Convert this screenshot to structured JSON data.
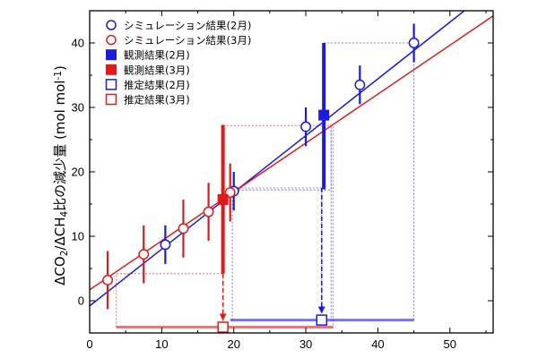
{
  "chart_data": {
    "type": "scatter",
    "title": "",
    "xlabel": "",
    "ylabel_parts": [
      "ΔCO",
      "2",
      "/ΔCH",
      "4",
      "比の減少量 (mol mol",
      "-1",
      ")"
    ],
    "xlim": [
      0,
      56
    ],
    "ylim": [
      -5,
      45
    ],
    "x_ticks": [
      0,
      10,
      20,
      30,
      40,
      50
    ],
    "y_ticks": [
      0,
      10,
      20,
      30,
      40
    ],
    "grid": false,
    "legend_position": "top-left",
    "colors": {
      "feb": "#1a1ae0",
      "mar": "#e01a1a"
    },
    "series": [
      {
        "name": "シミュレーション結果(2月)",
        "marker": "open-circle",
        "color": "#1a1ae0",
        "x": [
          10.5,
          20,
          30,
          37.5,
          45
        ],
        "y": [
          8.7,
          17,
          27,
          33.5,
          40
        ],
        "err": [
          3,
          3,
          3,
          3,
          3
        ]
      },
      {
        "name": "シミュレーション結果(3月)",
        "marker": "open-circle",
        "color": "#e01a1a",
        "x": [
          2.5,
          7.5,
          13,
          16.5,
          19.5
        ],
        "y": [
          3.2,
          7.2,
          11.2,
          13.8,
          16.8
        ],
        "err": [
          4.5,
          4.5,
          4.5,
          4.5,
          4.5
        ]
      },
      {
        "name": "観測結果(2月)",
        "marker": "filled-square",
        "color": "#1a1ae0",
        "x": [
          32.5
        ],
        "y": [
          28.8
        ],
        "yerr_low": [
          11.5
        ],
        "yerr_high": [
          11.2
        ]
      },
      {
        "name": "観測結果(3月)",
        "marker": "filled-square",
        "color": "#e01a1a",
        "x": [
          18.5
        ],
        "y": [
          15.7
        ],
        "yerr_low": [
          11.5
        ],
        "yerr_high": [
          11.6
        ]
      },
      {
        "name": "推定結果(2月)",
        "marker": "open-square",
        "color": "#1a1ae0",
        "x": [
          32.2
        ],
        "y": [
          -3
        ],
        "xerr_low": [
          12.7
        ],
        "xerr_high": [
          12.8
        ]
      },
      {
        "name": "推定結果(3月)",
        "marker": "open-square",
        "color": "#e01a1a",
        "x": [
          18.5
        ],
        "y": [
          -4.1
        ],
        "xerr_low": [
          14.8
        ],
        "xerr_high": [
          15.3
        ]
      }
    ],
    "fit_lines": [
      {
        "color": "#1a1ae0",
        "x": [
          0,
          52
        ],
        "y": [
          -0.8,
          45
        ]
      },
      {
        "color": "#e01a1a",
        "x": [
          0,
          56
        ],
        "y": [
          1.7,
          44.2
        ]
      }
    ],
    "guide_lines": [
      {
        "color": "#1a1ae0",
        "points": [
          [
            20,
            17.5
          ],
          [
            32.2,
            17.5
          ],
          [
            32.2,
            -3
          ]
        ]
      },
      {
        "color": "#e01a1a",
        "points": [
          [
            18.5,
            4.2
          ],
          [
            18.5,
            -4.1
          ]
        ]
      },
      {
        "color": "#1a1ae0",
        "points": [
          [
            19.8,
            -3
          ],
          [
            19.8,
            17.2
          ],
          [
            33.5,
            17.2
          ],
          [
            33.5,
            27.2
          ],
          [
            33.5,
            -3
          ]
        ]
      },
      {
        "color": "#1a1ae0",
        "points": [
          [
            32.5,
            40
          ],
          [
            45,
            40
          ],
          [
            45,
            -3
          ]
        ]
      },
      {
        "color": "#e01a1a",
        "points": [
          [
            3.7,
            -4.1
          ],
          [
            3.7,
            4.2
          ],
          [
            18.5,
            4.2
          ]
        ]
      },
      {
        "color": "#e01a1a",
        "points": [
          [
            18.5,
            27.2
          ],
          [
            33.8,
            27.2
          ],
          [
            33.8,
            -4.1
          ]
        ]
      }
    ],
    "dashed_arrows": [
      {
        "color": "#1a1ae0",
        "x": 32.2,
        "from_y": 17.5,
        "to_y": -3
      },
      {
        "color": "#e01a1a",
        "x": 18.5,
        "from_y": 4.2,
        "to_y": -4.1
      }
    ]
  }
}
